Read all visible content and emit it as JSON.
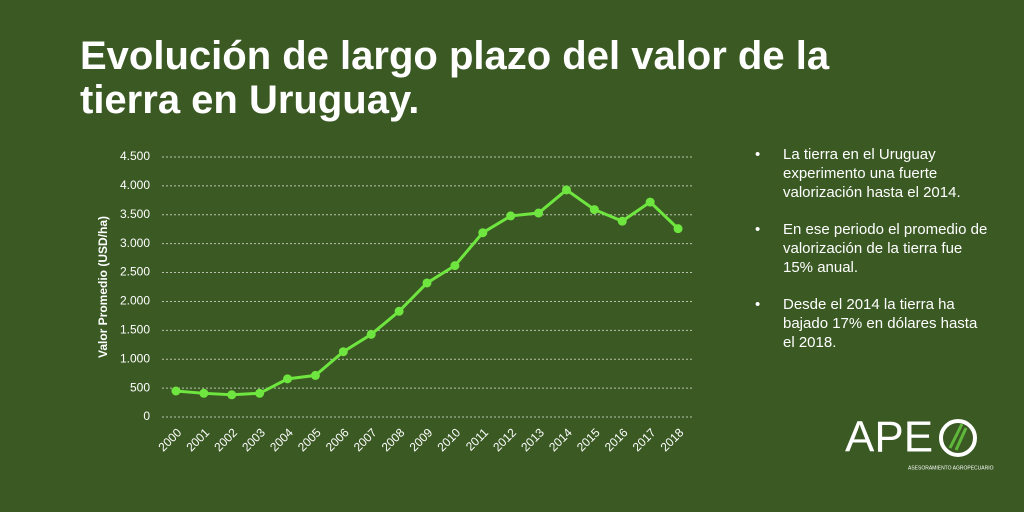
{
  "chart_data": {
    "type": "line",
    "title": "Evolución de largo plazo del valor de la tierra en Uruguay.",
    "y_label": "Valor Promedio (USD/ha)",
    "categories": [
      "2000",
      "2001",
      "2002",
      "2003",
      "2004",
      "2005",
      "2006",
      "2007",
      "2008",
      "2009",
      "2010",
      "2011",
      "2012",
      "2013",
      "2014",
      "2015",
      "2016",
      "2017",
      "2018"
    ],
    "values": [
      450,
      410,
      385,
      410,
      660,
      720,
      1130,
      1430,
      1830,
      2320,
      2620,
      3190,
      3480,
      3530,
      3930,
      3590,
      3390,
      3720,
      3260
    ],
    "color": "#6fe53f",
    "ylim": [
      0,
      4500
    ],
    "yticks": [
      0,
      500,
      {
        "value": 1000,
        "label": "1.000"
      },
      {
        "value": 1500,
        "label": "1.500"
      },
      {
        "value": 2000,
        "label": "2.000"
      },
      {
        "value": 2500,
        "label": "2.500"
      },
      {
        "value": 3000,
        "label": "3.000"
      },
      {
        "value": 3500,
        "label": "3.500"
      },
      {
        "value": 4000,
        "label": "4.000"
      },
      {
        "value": 4500,
        "label": "4.500"
      }
    ],
    "grid": true
  },
  "notes": [
    "La tierra en el Uruguay experimento una fuerte valorización hasta el 2014.",
    "En ese periodo el promedio de valorización de la tierra fue 15% anual.",
    "Desde el 2014 la tierra ha bajado 17% en dólares hasta el 2018."
  ],
  "logo": {
    "name": "APE",
    "tagline": "ASESORAMIENTO AGROPECUARIO"
  }
}
